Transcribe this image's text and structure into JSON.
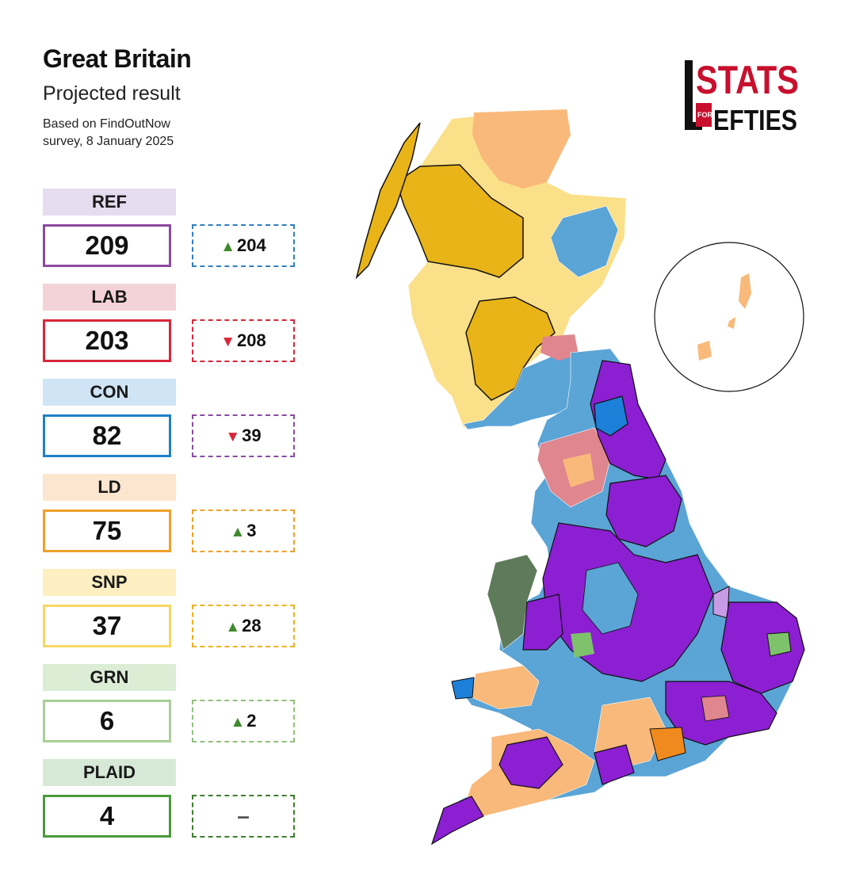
{
  "header": {
    "title": "Great Britain",
    "subtitle": "Projected result",
    "source_line1": "Based on FindOutNow",
    "source_line2": "survey, 8 January 2025"
  },
  "logo": {
    "line1": "STATS",
    "small": "FOR",
    "line2": "EFTIES"
  },
  "parties": [
    {
      "label": "REF",
      "seats": "209",
      "change": "204",
      "direction": "up",
      "label_bg": "#e6dcef",
      "border": "#8a4aa0",
      "change_border": "#2f7fc0"
    },
    {
      "label": "LAB",
      "seats": "203",
      "change": "208",
      "direction": "down",
      "label_bg": "#f4d3d8",
      "border": "#d8263a",
      "change_border": "#d8263a"
    },
    {
      "label": "CON",
      "seats": "82",
      "change": "39",
      "direction": "down",
      "label_bg": "#cfe5f5",
      "border": "#1c80c8",
      "change_border": "#8a4aa0"
    },
    {
      "label": "LD",
      "seats": "75",
      "change": "3",
      "direction": "up",
      "label_bg": "#fde6cf",
      "border": "#f0a02a",
      "change_border": "#f0a02a"
    },
    {
      "label": "SNP",
      "seats": "37",
      "change": "28",
      "direction": "up",
      "label_bg": "#fdefc2",
      "border": "#f6d860",
      "change_border": "#f0b020"
    },
    {
      "label": "GRN",
      "seats": "6",
      "change": "2",
      "direction": "up",
      "label_bg": "#dcedd6",
      "border": "#a9cf96",
      "change_border": "#8fc27a"
    },
    {
      "label": "PLAID",
      "seats": "4",
      "change": "–",
      "direction": "none",
      "label_bg": "#d6e9d6",
      "border": "#4a9a3a",
      "change_border": "#3e7e2e"
    }
  ],
  "map_colors": {
    "ref": "#8b1fd1",
    "lab": "#e0868e",
    "con": "#5ba4d6",
    "con_dark": "#1c7fd8",
    "ld": "#f9b97a",
    "ld_dark": "#f08a1e",
    "snp": "#fbe08a",
    "snp_dark": "#e8b417",
    "grn": "#7ec36b",
    "plaid": "#5e7a5a",
    "ref_light": "#c79be6"
  }
}
